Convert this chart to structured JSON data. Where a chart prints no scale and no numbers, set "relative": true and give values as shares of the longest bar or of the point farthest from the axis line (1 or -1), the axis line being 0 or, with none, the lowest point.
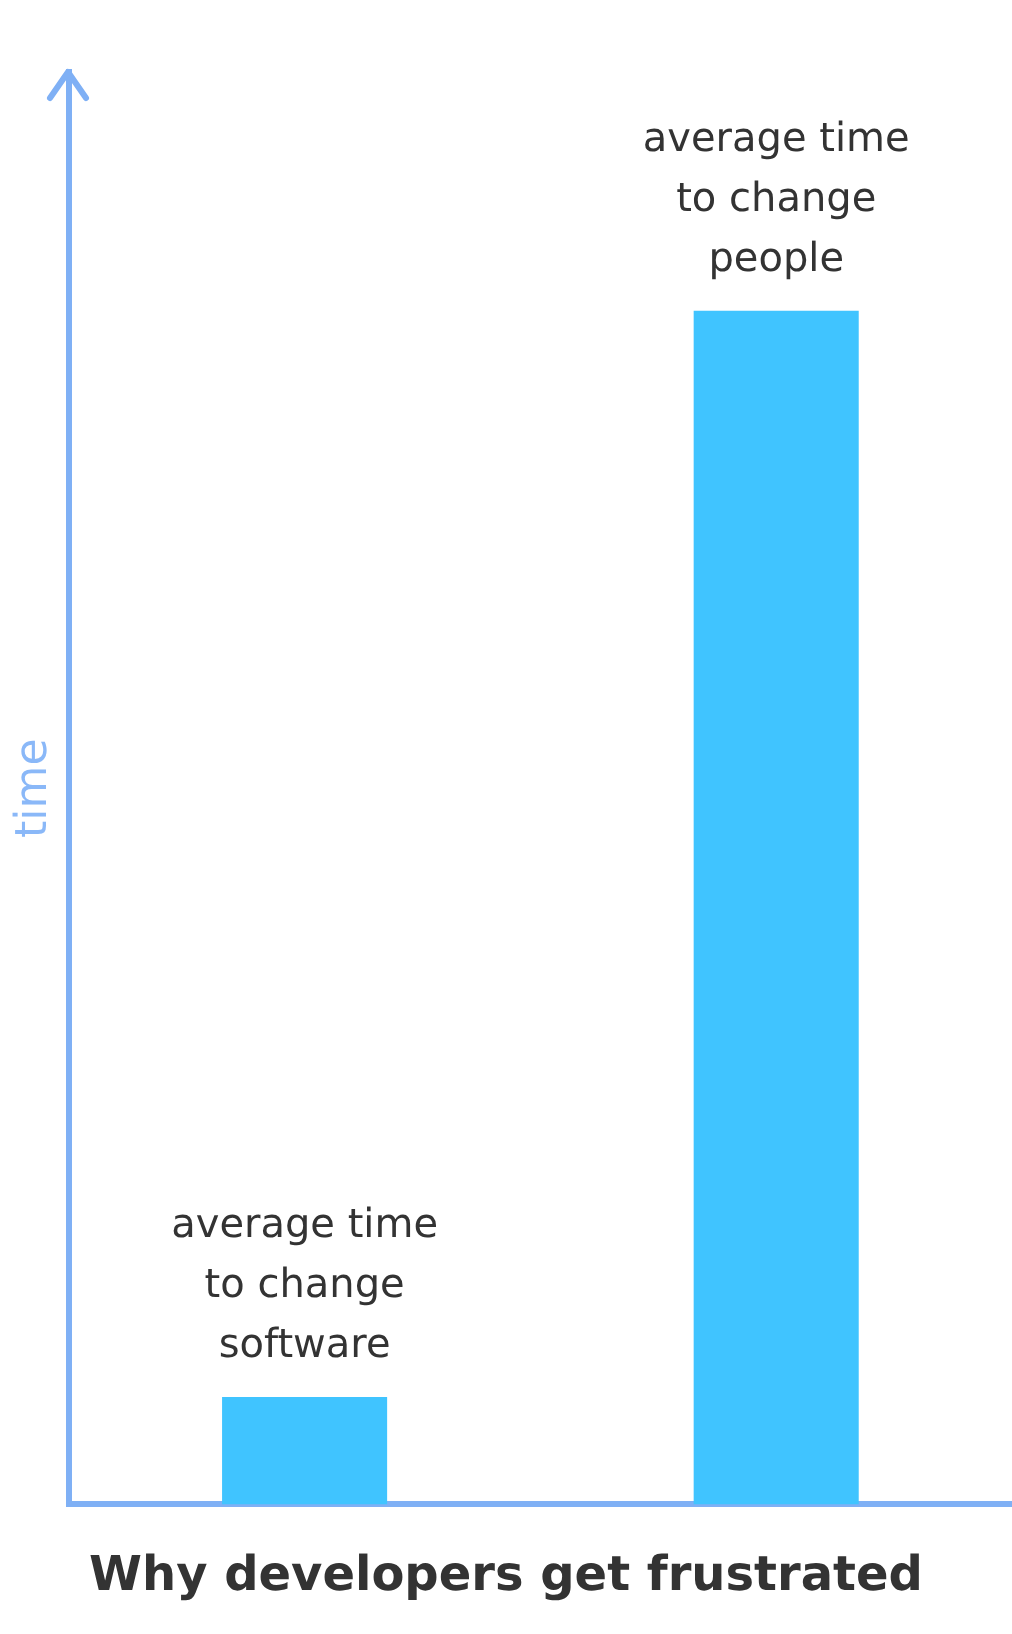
{
  "chart_data": {
    "type": "bar",
    "title": "Why developers get frustrated",
    "ylabel": "time",
    "relative": true,
    "categories": [
      "average time to change software",
      "average time to change people"
    ],
    "values": [
      0.09,
      1
    ],
    "color": "#40c4ff",
    "grid": false,
    "legend": false
  }
}
